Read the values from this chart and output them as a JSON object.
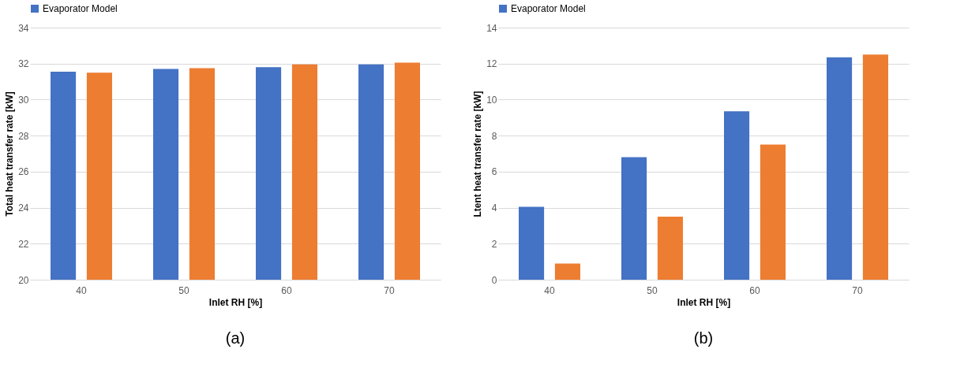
{
  "chart_data": [
    {
      "type": "bar",
      "xlabel": "Inlet RH [%]",
      "ylabel": "Total heat transfer rate [kW]",
      "categories": [
        "40",
        "50",
        "60",
        "70"
      ],
      "series": [
        {
          "name": "Evaporator Model",
          "color": "#4472c4",
          "values": [
            31.55,
            31.7,
            31.8,
            31.95
          ]
        },
        {
          "color": "#ed7d31",
          "values": [
            31.5,
            31.75,
            31.95,
            32.05
          ]
        }
      ],
      "ylim": [
        20,
        34
      ],
      "yticks": [
        20,
        22,
        24,
        26,
        28,
        30,
        32,
        34
      ],
      "grid": "y",
      "legend": "top",
      "annotations": [
        "(a)"
      ]
    },
    {
      "type": "bar",
      "xlabel": "Inlet RH [%]",
      "ylabel": "Ltent heat transfer rate [kW]",
      "categories": [
        "40",
        "50",
        "60",
        "70"
      ],
      "series": [
        {
          "name": "Evaporator Model",
          "color": "#4472c4",
          "values": [
            4.05,
            6.8,
            9.35,
            12.35
          ]
        },
        {
          "color": "#ed7d31",
          "values": [
            0.9,
            3.5,
            7.5,
            12.5
          ]
        }
      ],
      "ylim": [
        0,
        14
      ],
      "yticks": [
        0,
        2,
        4,
        6,
        8,
        10,
        12,
        14
      ],
      "grid": "y",
      "legend": "top",
      "annotations": [
        "(b)"
      ]
    }
  ]
}
